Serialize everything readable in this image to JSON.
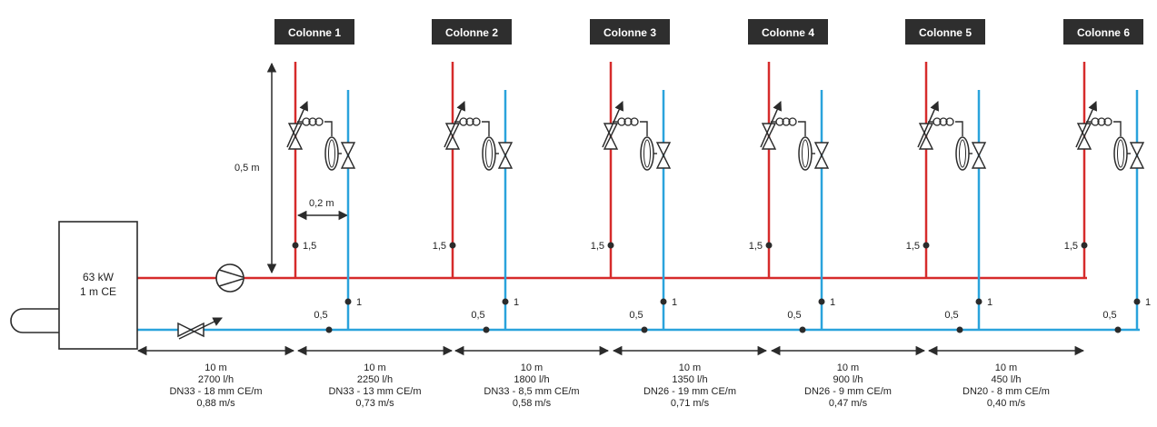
{
  "colors": {
    "supply": "#d62b2b",
    "return": "#2aa3dc",
    "ink": "#2b2b2b",
    "title_bg": "#2e2e2e",
    "title_text": "#ffffff"
  },
  "boiler": {
    "power": "63 kW",
    "head": "1 m CE"
  },
  "dimensions": {
    "height": "0,5 m",
    "spacing": "0,2 m"
  },
  "columns": [
    {
      "title": "Colonne 1",
      "supply_label": "1,5",
      "return_label": "1",
      "bottom_label": "0,5"
    },
    {
      "title": "Colonne 2",
      "supply_label": "1,5",
      "return_label": "1",
      "bottom_label": "0,5"
    },
    {
      "title": "Colonne 3",
      "supply_label": "1,5",
      "return_label": "1",
      "bottom_label": "0,5"
    },
    {
      "title": "Colonne 4",
      "supply_label": "1,5",
      "return_label": "1",
      "bottom_label": "0,5"
    },
    {
      "title": "Colonne 5",
      "supply_label": "1,5",
      "return_label": "1",
      "bottom_label": "0,5"
    },
    {
      "title": "Colonne 6",
      "supply_label": "1,5",
      "return_label": "1",
      "bottom_label": "0,5"
    }
  ],
  "segments": [
    {
      "length": "10 m",
      "flow": "2700 l/h",
      "pipe": "DN33 - 18 mm CE/m",
      "velocity": "0,88 m/s"
    },
    {
      "length": "10 m",
      "flow": "2250 l/h",
      "pipe": "DN33 - 13 mm CE/m",
      "velocity": "0,73 m/s"
    },
    {
      "length": "10 m",
      "flow": "1800 l/h",
      "pipe": "DN33 - 8,5 mm CE/m",
      "velocity": "0,58 m/s"
    },
    {
      "length": "10 m",
      "flow": "1350 l/h",
      "pipe": "DN26 - 19 mm CE/m",
      "velocity": "0,71 m/s"
    },
    {
      "length": "10 m",
      "flow": "900 l/h",
      "pipe": "DN26 - 9 mm CE/m",
      "velocity": "0,47 m/s"
    },
    {
      "length": "10 m",
      "flow": "450 l/h",
      "pipe": "DN20 - 8 mm CE/m",
      "velocity": "0,40 m/s"
    }
  ]
}
